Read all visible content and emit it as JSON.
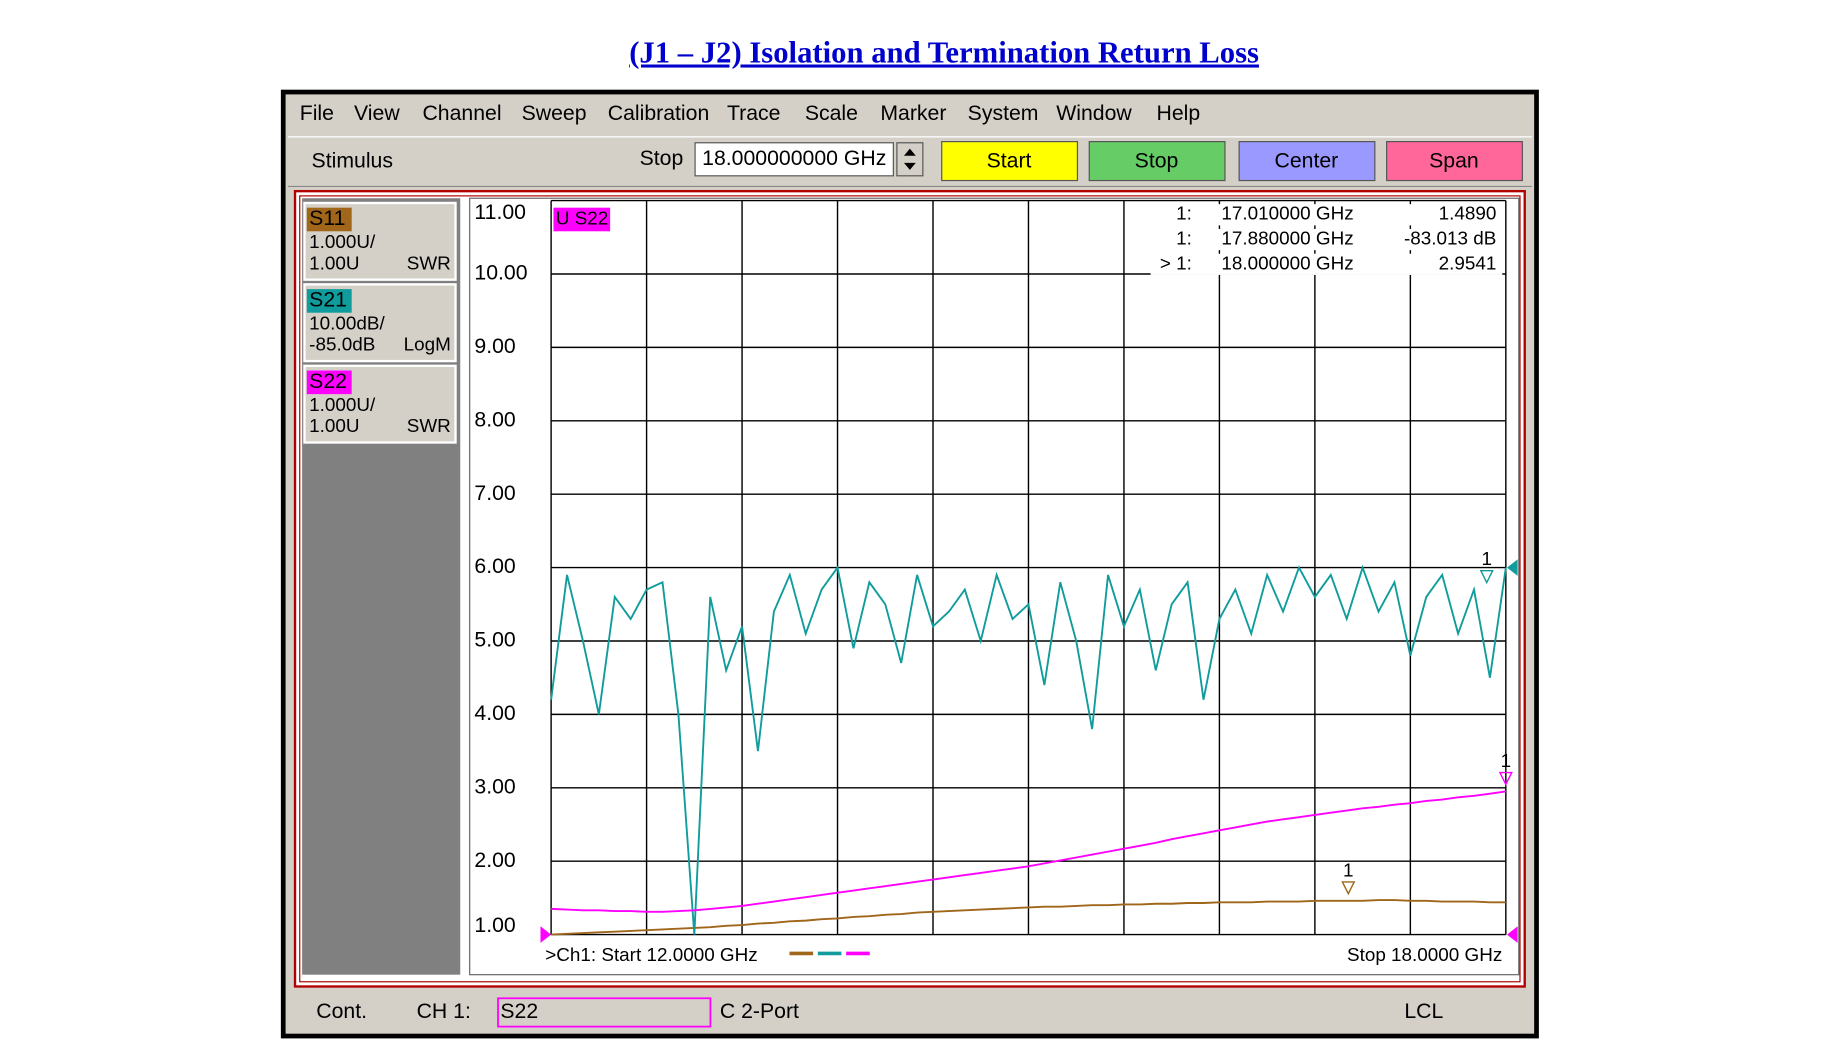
{
  "title": "(J1 – J2) Isolation and Termination Return Loss",
  "menu": [
    "File",
    "View",
    "Channel",
    "Sweep",
    "Calibration",
    "Trace",
    "Scale",
    "Marker",
    "System",
    "Window",
    "Help"
  ],
  "toolbar": {
    "label": "Stimulus",
    "field_label": "Stop",
    "field_value": "18.000000000 GHz",
    "buttons": [
      {
        "label": "Start",
        "color": "#ffff00"
      },
      {
        "label": "Stop",
        "color": "#66cc66"
      },
      {
        "label": "Center",
        "color": "#9999ff"
      },
      {
        "label": "Span",
        "color": "#ff6699"
      }
    ]
  },
  "traces": [
    {
      "name": "S11",
      "color": "#a0661a",
      "scale": "1.000U/",
      "ref": "1.00U",
      "format": "SWR"
    },
    {
      "name": "S21",
      "color": "#109c9c",
      "scale": "10.00dB/",
      "ref": "-85.0dB",
      "format": "LogM"
    },
    {
      "name": "S22",
      "color": "#ff00ff",
      "scale": "1.000U/",
      "ref": "1.00U",
      "format": "SWR"
    }
  ],
  "chart_data": {
    "type": "line",
    "active_trace": "U S22",
    "xlim": [
      12,
      18
    ],
    "ylim": [
      1,
      11
    ],
    "yticks": [
      {
        "value": 11,
        "label": "11.00"
      },
      {
        "value": 10,
        "label": "10.00"
      },
      {
        "value": 9,
        "label": "9.00"
      },
      {
        "value": 8,
        "label": "8.00"
      },
      {
        "value": 7,
        "label": "7.00"
      },
      {
        "value": 6,
        "label": "6.00"
      },
      {
        "value": 5,
        "label": "5.00"
      },
      {
        "value": 4,
        "label": "4.00"
      },
      {
        "value": 3,
        "label": "3.00"
      },
      {
        "value": 2,
        "label": "2.00"
      },
      {
        "value": 1,
        "label": "1.00"
      }
    ],
    "grid": true,
    "x": [
      12,
      12.1,
      12.2,
      12.3,
      12.4,
      12.5,
      12.6,
      12.7,
      12.8,
      12.9,
      13,
      13.1,
      13.2,
      13.3,
      13.4,
      13.5,
      13.6,
      13.7,
      13.8,
      13.9,
      14,
      14.1,
      14.2,
      14.3,
      14.4,
      14.5,
      14.6,
      14.7,
      14.8,
      14.9,
      15,
      15.1,
      15.2,
      15.3,
      15.4,
      15.5,
      15.6,
      15.7,
      15.8,
      15.9,
      16,
      16.1,
      16.2,
      16.3,
      16.4,
      16.5,
      16.6,
      16.7,
      16.8,
      16.9,
      17,
      17.1,
      17.2,
      17.3,
      17.4,
      17.5,
      17.6,
      17.7,
      17.8,
      17.9,
      18
    ],
    "series": [
      {
        "name": "S11",
        "color": "#a0661a",
        "values": [
          1.0,
          1.01,
          1.02,
          1.03,
          1.04,
          1.05,
          1.06,
          1.07,
          1.08,
          1.09,
          1.1,
          1.12,
          1.13,
          1.15,
          1.16,
          1.18,
          1.19,
          1.21,
          1.22,
          1.24,
          1.25,
          1.27,
          1.28,
          1.3,
          1.31,
          1.32,
          1.33,
          1.34,
          1.35,
          1.36,
          1.37,
          1.38,
          1.38,
          1.39,
          1.4,
          1.4,
          1.41,
          1.41,
          1.42,
          1.42,
          1.43,
          1.43,
          1.44,
          1.44,
          1.44,
          1.45,
          1.45,
          1.45,
          1.46,
          1.46,
          1.46,
          1.46,
          1.47,
          1.47,
          1.46,
          1.46,
          1.45,
          1.45,
          1.45,
          1.44,
          1.44
        ]
      },
      {
        "name": "S21",
        "color": "#109c9c",
        "values": [
          4.2,
          5.9,
          5.0,
          4.0,
          5.6,
          5.3,
          5.7,
          5.8,
          4.0,
          1.0,
          5.6,
          4.6,
          5.2,
          3.5,
          5.4,
          5.9,
          5.1,
          5.7,
          6.0,
          4.9,
          5.8,
          5.5,
          4.7,
          5.9,
          5.2,
          5.4,
          5.7,
          5.0,
          5.9,
          5.3,
          5.5,
          4.4,
          5.8,
          5.0,
          3.8,
          5.9,
          5.2,
          5.7,
          4.6,
          5.5,
          5.8,
          4.2,
          5.3,
          5.7,
          5.1,
          5.9,
          5.4,
          6.0,
          5.6,
          5.9,
          5.3,
          6.0,
          5.4,
          5.8,
          4.8,
          5.6,
          5.9,
          5.1,
          5.7,
          4.5,
          6.0
        ]
      },
      {
        "name": "S22",
        "color": "#ff00ff",
        "values": [
          1.35,
          1.34,
          1.33,
          1.33,
          1.32,
          1.32,
          1.31,
          1.31,
          1.32,
          1.33,
          1.35,
          1.37,
          1.39,
          1.42,
          1.45,
          1.48,
          1.51,
          1.54,
          1.57,
          1.6,
          1.63,
          1.66,
          1.69,
          1.72,
          1.75,
          1.78,
          1.81,
          1.84,
          1.87,
          1.9,
          1.93,
          1.97,
          2.01,
          2.05,
          2.09,
          2.13,
          2.17,
          2.21,
          2.25,
          2.3,
          2.34,
          2.38,
          2.42,
          2.46,
          2.5,
          2.54,
          2.57,
          2.6,
          2.63,
          2.66,
          2.69,
          2.72,
          2.74,
          2.77,
          2.79,
          2.82,
          2.84,
          2.87,
          2.89,
          2.92,
          2.95
        ]
      }
    ],
    "markers": [
      {
        "num": "1:",
        "freq": "17.010000 GHz",
        "value": "1.4890",
        "tag": "1"
      },
      {
        "num": "1:",
        "freq": "17.880000 GHz",
        "value": "-83.013 dB",
        "tag": "1"
      },
      {
        "num": "> 1:",
        "freq": "18.000000 GHz",
        "value": "2.9541",
        "tag": "1"
      }
    ],
    "start_label": ">Ch1: Start  12.0000 GHz",
    "stop_label": "Stop  18.0000 GHz"
  },
  "status": {
    "mode": "Cont.",
    "channel": "CH 1:",
    "trace": "S22",
    "cal": "C  2-Port",
    "remote": "LCL"
  }
}
